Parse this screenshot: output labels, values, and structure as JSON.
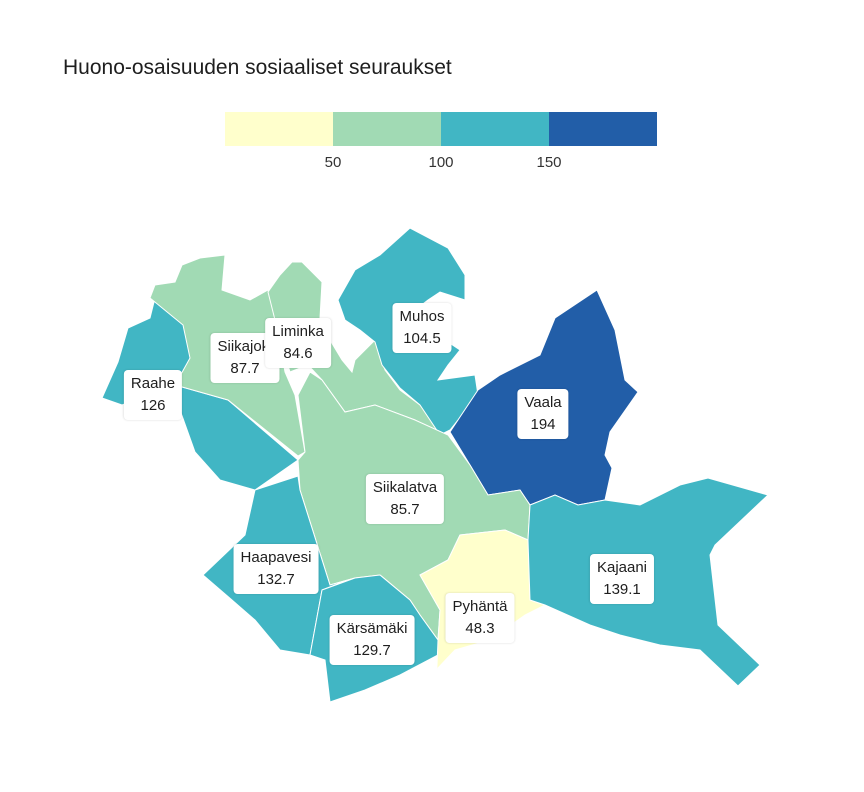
{
  "title": "Huono-osaisuuden sosiaaliset seuraukset",
  "legend": {
    "colors": [
      "#ffffcc",
      "#a1dab4",
      "#41b6c4",
      "#225ea8"
    ],
    "ticks": [
      "50",
      "100",
      "150"
    ]
  },
  "regions": [
    {
      "name": "Raahe",
      "value": "126",
      "color": "#41b6c4"
    },
    {
      "name": "Siikajoki",
      "value": "87.7",
      "color": "#a1dab4"
    },
    {
      "name": "Liminka",
      "value": "84.6",
      "color": "#a1dab4"
    },
    {
      "name": "Muhos",
      "value": "104.5",
      "color": "#41b6c4"
    },
    {
      "name": "Vaala",
      "value": "194",
      "color": "#225ea8"
    },
    {
      "name": "Siikalatva",
      "value": "85.7",
      "color": "#a1dab4"
    },
    {
      "name": "Haapavesi",
      "value": "132.7",
      "color": "#41b6c4"
    },
    {
      "name": "Kajaani",
      "value": "139.1",
      "color": "#41b6c4"
    },
    {
      "name": "Pyhäntä",
      "value": "48.3",
      "color": "#ffffcc"
    },
    {
      "name": "Kärsämäki",
      "value": "129.7",
      "color": "#41b6c4"
    }
  ]
}
